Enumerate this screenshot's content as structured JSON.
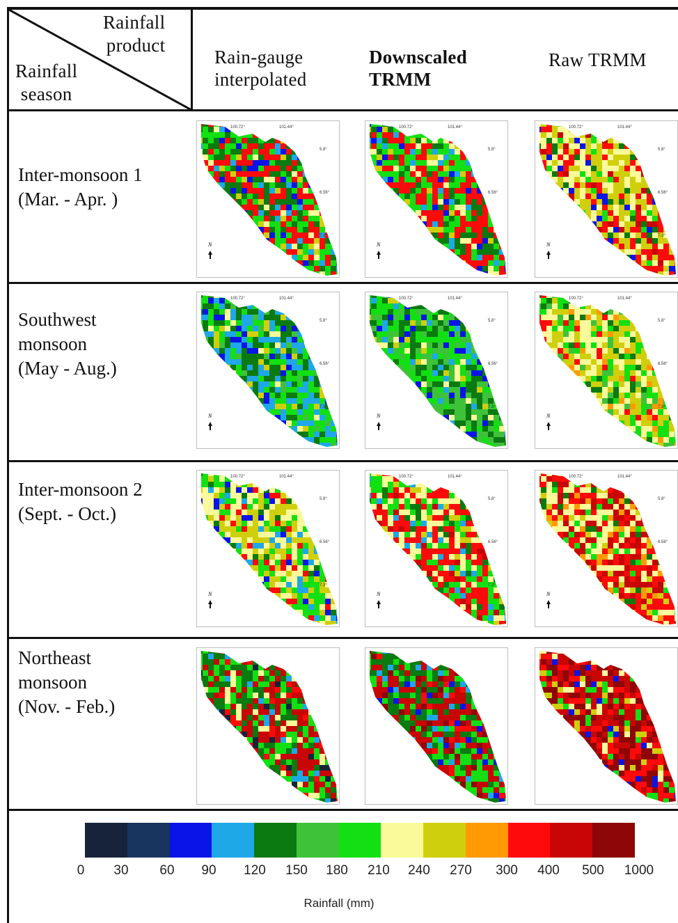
{
  "header": {
    "corner_top": "Rainfall\nproduct",
    "corner_bottom": "Rainfall\nseason",
    "columns": [
      "Rain-gauge\ninterpolated",
      "Downscaled\nTRMM",
      "Raw TRMM"
    ]
  },
  "rows": [
    {
      "label": "Inter-monsoon 1\n(Mar. - Apr. )"
    },
    {
      "label": "Southwest\nmonsoon\n(May - Aug.)"
    },
    {
      "label": "Inter-monsoon 2\n(Sept. - Oct.)"
    },
    {
      "label": "Northeast\nmonsoon\n (Nov. - Feb.)"
    }
  ],
  "map_labels": {
    "lon1": "100.72°",
    "lon2": "101.44°",
    "lat1": "5.8°",
    "lat2": "6.56°",
    "lat3": "7.3°",
    "north": "N"
  },
  "legend": {
    "title": "Rainfall (mm)",
    "ticks": [
      "0",
      "30",
      "60",
      "90",
      "120",
      "150",
      "180",
      "210",
      "240",
      "270",
      "300",
      "400",
      "500",
      "1000"
    ],
    "colors": [
      "#16233a",
      "#17355f",
      "#0a14e8",
      "#1ea8e8",
      "#0b7a10",
      "#3ec23a",
      "#12e012",
      "#fafa9a",
      "#d0cf0e",
      "#ff9a05",
      "#ff0a0a",
      "#c80606",
      "#8e0606"
    ]
  },
  "panels": [
    [
      "#12e012",
      "#0b7a10",
      "#ff0a0a",
      "#fafa9a",
      "#0a14e8",
      "#d0cf0e",
      "#1ea8e8"
    ],
    [
      "#0b7a10",
      "#12e012",
      "#ff0a0a",
      "#d0cf0e",
      "#0a14e8",
      "#fafa9a",
      "#1ea8e8"
    ],
    [
      "#ff0a0a",
      "#fafa9a",
      "#d0cf0e",
      "#12e012",
      "#0b7a10",
      "#0a14e8",
      "#c80606"
    ],
    [
      "#12e012",
      "#0b7a10",
      "#1ea8e8",
      "#fafa9a",
      "#0a14e8",
      "#d0cf0e",
      "#3ec23a"
    ],
    [
      "#0b7a10",
      "#12e012",
      "#3ec23a",
      "#1ea8e8",
      "#0a14e8",
      "#fafa9a",
      "#d0cf0e"
    ],
    [
      "#12e012",
      "#fafa9a",
      "#d0cf0e",
      "#0b7a10",
      "#ff0a0a",
      "#3ec23a",
      "#ff9a05"
    ],
    [
      "#12e012",
      "#fafa9a",
      "#d0cf0e",
      "#ff0a0a",
      "#0b7a10",
      "#1ea8e8",
      "#0a14e8"
    ],
    [
      "#12e012",
      "#fafa9a",
      "#ff0a0a",
      "#d0cf0e",
      "#0b7a10",
      "#c80606",
      "#1ea8e8"
    ],
    [
      "#ff0a0a",
      "#fafa9a",
      "#c80606",
      "#12e012",
      "#d0cf0e",
      "#0b7a10",
      "#ff9a05"
    ],
    [
      "#12e012",
      "#0b7a10",
      "#c80606",
      "#ff0a0a",
      "#1ea8e8",
      "#16233a",
      "#fafa9a"
    ],
    [
      "#12e012",
      "#0b7a10",
      "#c80606",
      "#8e0606",
      "#0a14e8",
      "#ff0a0a",
      "#1ea8e8"
    ],
    [
      "#ff0a0a",
      "#c80606",
      "#8e0606",
      "#12e012",
      "#d0cf0e",
      "#fafa9a",
      "#0a14e8"
    ]
  ]
}
